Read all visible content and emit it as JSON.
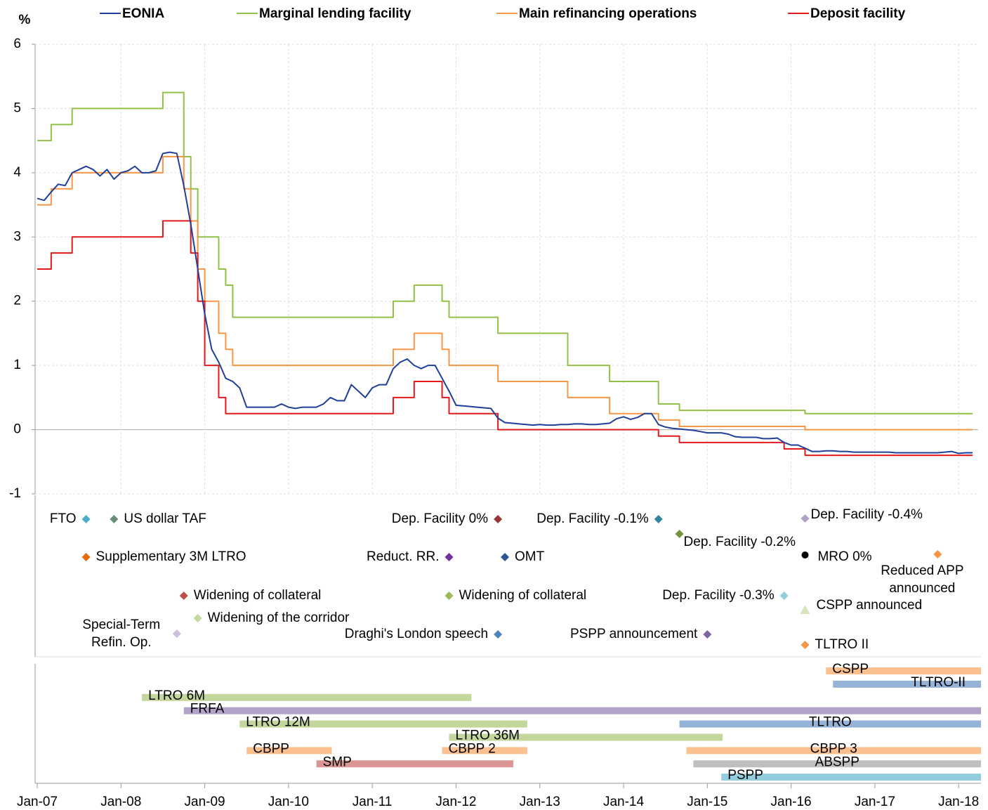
{
  "chart_data": [
    {
      "type": "line",
      "y_label": "%",
      "ylim": [
        -1,
        6
      ],
      "yticks": [
        -1,
        0,
        1,
        2,
        3,
        4,
        5,
        6
      ],
      "grid": true,
      "series": [
        {
          "name": "EONIA",
          "color": "#1f3f99",
          "step": false,
          "x": [
            "2007-01",
            "2007-02",
            "2007-03",
            "2007-04",
            "2007-05",
            "2007-06",
            "2007-07",
            "2007-08",
            "2007-09",
            "2007-10",
            "2007-11",
            "2007-12",
            "2008-01",
            "2008-02",
            "2008-03",
            "2008-04",
            "2008-05",
            "2008-06",
            "2008-07",
            "2008-08",
            "2008-09",
            "2008-10",
            "2008-11",
            "2008-12",
            "2009-01",
            "2009-02",
            "2009-03",
            "2009-04",
            "2009-05",
            "2009-06",
            "2009-07",
            "2009-08",
            "2009-09",
            "2009-10",
            "2009-11",
            "2009-12",
            "2010-01",
            "2010-02",
            "2010-03",
            "2010-04",
            "2010-05",
            "2010-06",
            "2010-07",
            "2010-08",
            "2010-09",
            "2010-10",
            "2010-11",
            "2010-12",
            "2011-01",
            "2011-02",
            "2011-03",
            "2011-04",
            "2011-05",
            "2011-06",
            "2011-07",
            "2011-08",
            "2011-09",
            "2011-10",
            "2011-11",
            "2011-12",
            "2012-01",
            "2012-02",
            "2012-03",
            "2012-04",
            "2012-05",
            "2012-06",
            "2012-07",
            "2012-08",
            "2012-09",
            "2012-10",
            "2012-11",
            "2012-12",
            "2013-01",
            "2013-02",
            "2013-03",
            "2013-04",
            "2013-05",
            "2013-06",
            "2013-07",
            "2013-08",
            "2013-09",
            "2013-10",
            "2013-11",
            "2013-12",
            "2014-01",
            "2014-02",
            "2014-03",
            "2014-04",
            "2014-05",
            "2014-06",
            "2014-07",
            "2014-08",
            "2014-09",
            "2014-10",
            "2014-11",
            "2014-12",
            "2015-01",
            "2015-02",
            "2015-03",
            "2015-04",
            "2015-05",
            "2015-06",
            "2015-07",
            "2015-08",
            "2015-09",
            "2015-10",
            "2015-11",
            "2015-12",
            "2016-01",
            "2016-02",
            "2016-03",
            "2016-04",
            "2016-05",
            "2016-06",
            "2016-07",
            "2016-08",
            "2016-09",
            "2016-10",
            "2016-11",
            "2016-12",
            "2017-01",
            "2017-02",
            "2017-03",
            "2017-04",
            "2017-05",
            "2017-06",
            "2017-07",
            "2017-08",
            "2017-09",
            "2017-10",
            "2017-11",
            "2017-12",
            "2018-01",
            "2018-02",
            "2018-03"
          ],
          "values": [
            3.6,
            3.57,
            3.7,
            3.82,
            3.8,
            4.0,
            4.05,
            4.1,
            4.05,
            3.95,
            4.05,
            3.9,
            4.0,
            4.03,
            4.1,
            4.0,
            4.0,
            4.03,
            4.3,
            4.32,
            4.3,
            3.8,
            3.2,
            2.5,
            1.8,
            1.25,
            1.05,
            0.8,
            0.75,
            0.65,
            0.35,
            0.35,
            0.35,
            0.35,
            0.35,
            0.4,
            0.35,
            0.33,
            0.35,
            0.35,
            0.35,
            0.4,
            0.5,
            0.45,
            0.45,
            0.7,
            0.6,
            0.5,
            0.65,
            0.7,
            0.7,
            0.95,
            1.05,
            1.1,
            1.0,
            0.95,
            1.0,
            1.0,
            0.8,
            0.6,
            0.38,
            0.37,
            0.36,
            0.35,
            0.34,
            0.33,
            0.18,
            0.11,
            0.1,
            0.09,
            0.08,
            0.07,
            0.08,
            0.07,
            0.07,
            0.08,
            0.08,
            0.09,
            0.09,
            0.08,
            0.08,
            0.09,
            0.1,
            0.17,
            0.2,
            0.16,
            0.19,
            0.25,
            0.25,
            0.08,
            0.04,
            0.02,
            0.01,
            0.0,
            -0.01,
            -0.03,
            -0.05,
            -0.05,
            -0.05,
            -0.07,
            -0.11,
            -0.12,
            -0.12,
            -0.12,
            -0.14,
            -0.14,
            -0.13,
            -0.2,
            -0.24,
            -0.24,
            -0.29,
            -0.34,
            -0.34,
            -0.33,
            -0.33,
            -0.34,
            -0.34,
            -0.35,
            -0.35,
            -0.35,
            -0.35,
            -0.35,
            -0.35,
            -0.36,
            -0.36,
            -0.36,
            -0.36,
            -0.36,
            -0.36,
            -0.36,
            -0.35,
            -0.34,
            -0.37,
            -0.36,
            -0.36
          ]
        },
        {
          "name": "Marginal lending facility",
          "color": "#92c047",
          "step": true,
          "x": [
            "2007-01",
            "2007-03",
            "2007-06",
            "2008-07",
            "2008-10",
            "2008-11",
            "2008-12",
            "2009-03",
            "2009-04",
            "2009-05",
            "2011-04",
            "2011-07",
            "2011-11",
            "2011-12",
            "2012-07",
            "2013-05",
            "2013-11",
            "2014-06",
            "2014-09",
            "2016-03",
            "2018-03"
          ],
          "values": [
            4.5,
            4.75,
            5,
            5.25,
            4.25,
            3.75,
            3,
            2.5,
            2.25,
            1.75,
            2,
            2.25,
            2,
            1.75,
            1.5,
            1,
            0.75,
            0.4,
            0.3,
            0.25,
            0.25
          ]
        },
        {
          "name": "Main refinancing operations",
          "color": "#f79646",
          "step": true,
          "x": [
            "2007-01",
            "2007-03",
            "2007-06",
            "2008-07",
            "2008-10",
            "2008-11",
            "2008-12",
            "2009-01",
            "2009-03",
            "2009-04",
            "2009-05",
            "2011-04",
            "2011-07",
            "2011-11",
            "2011-12",
            "2012-07",
            "2013-05",
            "2013-11",
            "2014-06",
            "2014-09",
            "2016-03",
            "2018-03"
          ],
          "values": [
            3.5,
            3.75,
            4,
            4.25,
            3.75,
            3.25,
            2.5,
            2,
            1.5,
            1.25,
            1,
            1.25,
            1.5,
            1.25,
            1,
            0.75,
            0.5,
            0.25,
            0.15,
            0.05,
            0,
            0
          ]
        },
        {
          "name": "Deposit facility",
          "color": "#e31a1c",
          "step": true,
          "x": [
            "2007-01",
            "2007-03",
            "2007-06",
            "2008-07",
            "2008-11",
            "2008-12",
            "2009-01",
            "2009-03",
            "2009-04",
            "2011-04",
            "2011-07",
            "2011-11",
            "2011-12",
            "2012-07",
            "2014-06",
            "2014-09",
            "2015-12",
            "2016-03",
            "2018-03"
          ],
          "values": [
            2.5,
            2.75,
            3,
            3.25,
            2.75,
            2,
            1,
            0.5,
            0.25,
            0.5,
            0.75,
            0.5,
            0.25,
            0,
            -0.1,
            -0.2,
            -0.3,
            -0.4,
            -0.4
          ]
        }
      ]
    },
    {
      "type": "events",
      "events": [
        {
          "label": "FTO",
          "x": "2007-08",
          "color": "#4bacc6",
          "marker": "diamond"
        },
        {
          "label": "US dollar TAF",
          "x": "2007-12",
          "color": "#6a8f74",
          "marker": "diamond"
        },
        {
          "label": "Dep. Facility 0%",
          "x": "2012-07",
          "color": "#953735",
          "marker": "diamond"
        },
        {
          "label": "Dep. Facility -0.1%",
          "x": "2014-06",
          "color": "#31849b",
          "marker": "diamond"
        },
        {
          "label": "Dep. Facility -0.4%",
          "x": "2016-03",
          "color": "#b3a2c7",
          "marker": "diamond"
        },
        {
          "label": "Dep. Facility -0.2%",
          "x": "2014-09",
          "color": "#77933c",
          "marker": "diamond"
        },
        {
          "label": "Supplementary 3M LTRO",
          "x": "2007-08",
          "color": "#e46c0a",
          "marker": "diamond"
        },
        {
          "label": "Reduct. RR.",
          "x": "2011-12",
          "color": "#7030a0",
          "marker": "diamond"
        },
        {
          "label": "OMT",
          "x": "2012-08",
          "color": "#2e5597",
          "marker": "diamond"
        },
        {
          "label": "MRO 0%",
          "x": "2016-03",
          "color": "#000000",
          "marker": "circle"
        },
        {
          "label": [
            "Reduced APP",
            "announced"
          ],
          "x": "2017-10",
          "color": "#f79646",
          "marker": "diamond"
        },
        {
          "label": "Widening of collateral",
          "x": "2008-10",
          "color": "#c0504d",
          "marker": "diamond"
        },
        {
          "label": "Widening of collateral",
          "x": "2011-12",
          "color": "#9bbb59",
          "marker": "diamond"
        },
        {
          "label": "Dep. Facility -0.3%",
          "x": "2015-12",
          "color": "#93cddd",
          "marker": "diamond"
        },
        {
          "label": "CSPP announced",
          "x": "2016-03",
          "color": "#d7e4bd",
          "marker": "triangle"
        },
        {
          "label": [
            "Special-Term",
            "Refin. Op."
          ],
          "x": "2008-09",
          "color": "#ccc0da",
          "marker": "diamond"
        },
        {
          "label": "Widening of the corridor",
          "x": "2008-12",
          "color": "#c3d69b",
          "marker": "diamond"
        },
        {
          "label": "Draghi's London speech",
          "x": "2012-07",
          "color": "#4f81bd",
          "marker": "diamond"
        },
        {
          "label": "PSPP announcement",
          "x": "2015-01",
          "color": "#8064a2",
          "marker": "diamond"
        },
        {
          "label": "TLTRO II",
          "x": "2016-03",
          "color": "#f79646",
          "marker": "diamond"
        }
      ]
    },
    {
      "type": "gantt",
      "xlim": [
        "2007-01",
        "2018-04"
      ],
      "xticks": [
        {
          "value": "2007-01",
          "label": "Jan-07"
        },
        {
          "value": "2008-01",
          "label": "Jan-08"
        },
        {
          "value": "2009-01",
          "label": "Jan-09"
        },
        {
          "value": "2010-01",
          "label": "Jan-10"
        },
        {
          "value": "2011-01",
          "label": "Jan-11"
        },
        {
          "value": "2012-01",
          "label": "Jan-12"
        },
        {
          "value": "2013-01",
          "label": "Jan-13"
        },
        {
          "value": "2014-01",
          "label": "Jan-14"
        },
        {
          "value": "2015-01",
          "label": "Jan-15"
        },
        {
          "value": "2016-01",
          "label": "Jan-16"
        },
        {
          "value": "2017-01",
          "label": "Jan-17"
        },
        {
          "value": "2018-01",
          "label": "Jan-18"
        }
      ],
      "bars": [
        {
          "label": "CSPP",
          "start": "2016-06",
          "end": "2018-04",
          "color": "#fac090"
        },
        {
          "label": "TLTRO-II",
          "start": "2016-07",
          "end": "2018-04",
          "color": "#95b3d7"
        },
        {
          "label": "LTRO 6M",
          "start": "2008-04",
          "end": "2012-03",
          "color": "#c3d69b"
        },
        {
          "label": "FRFA",
          "start": "2008-10",
          "end": "2018-04",
          "color": "#b3a2c7"
        },
        {
          "label": "LTRO 12M",
          "start": "2009-06",
          "end": "2012-11",
          "color": "#c3d69b"
        },
        {
          "label": "TLTRO",
          "start": "2014-09",
          "end": "2018-04",
          "color": "#95b3d7"
        },
        {
          "label": "LTRO 36M",
          "start": "2011-12",
          "end": "2015-03",
          "color": "#c3d69b"
        },
        {
          "label": "CBPP",
          "start": "2009-07",
          "end": "2010-07",
          "color": "#fac090"
        },
        {
          "label": "CBPP 2",
          "start": "2011-11",
          "end": "2012-11",
          "color": "#fac090"
        },
        {
          "label": "CBPP 3",
          "start": "2014-10",
          "end": "2018-04",
          "color": "#fac090"
        },
        {
          "label": "SMP",
          "start": "2010-05",
          "end": "2012-09",
          "color": "#d99694"
        },
        {
          "label": "ABSPP",
          "start": "2014-11",
          "end": "2018-04",
          "color": "#bfbfbf"
        },
        {
          "label": "PSPP",
          "start": "2015-03",
          "end": "2018-04",
          "color": "#93cddd"
        }
      ]
    }
  ]
}
